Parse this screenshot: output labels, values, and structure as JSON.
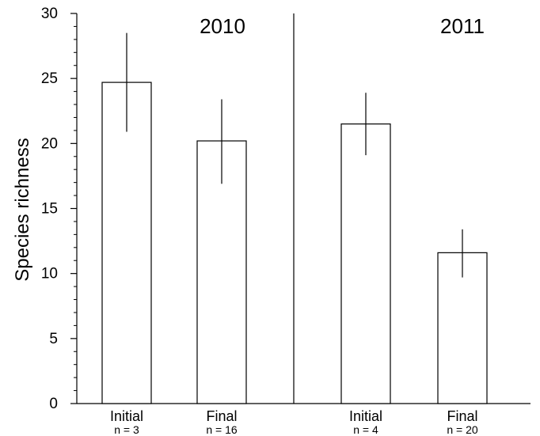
{
  "chart_data": {
    "type": "bar",
    "ylabel": "Species richness",
    "ylim": [
      0,
      30
    ],
    "yticks": [
      0,
      5,
      10,
      15,
      20,
      25,
      30
    ],
    "grid": false,
    "legend": "none",
    "bar_fill": "#ffffff",
    "bar_stroke": "#000000",
    "panels": [
      {
        "title": "2010",
        "categories": [
          {
            "label": "Initial",
            "n_label": "n = 3",
            "value": 24.7,
            "error_low": 20.9,
            "error_high": 28.5
          },
          {
            "label": "Final",
            "n_label": "n = 16",
            "value": 20.2,
            "error_low": 16.9,
            "error_high": 23.4
          }
        ]
      },
      {
        "title": "2011",
        "categories": [
          {
            "label": "Initial",
            "n_label": "n = 4",
            "value": 21.5,
            "error_low": 19.1,
            "error_high": 23.9
          },
          {
            "label": "Final",
            "n_label": "n = 20",
            "value": 11.6,
            "error_low": 9.7,
            "error_high": 13.4
          }
        ]
      }
    ]
  }
}
